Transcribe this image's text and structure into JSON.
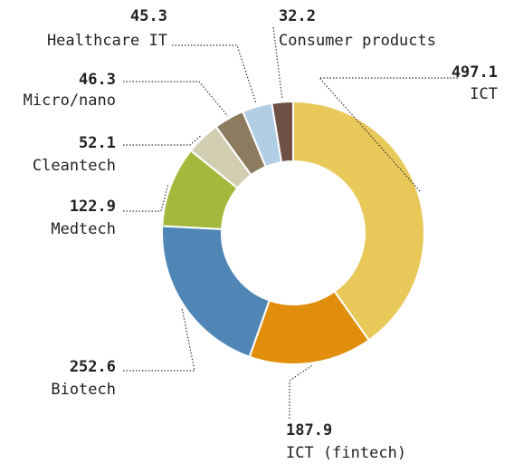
{
  "chart_data": {
    "type": "pie",
    "categories": [
      "ICT",
      "ICT (fintech)",
      "Biotech",
      "Medtech",
      "Cleantech",
      "Micro/nano",
      "Healthcare IT",
      "Consumer products"
    ],
    "values": [
      497.1,
      187.9,
      252.6,
      122.9,
      52.1,
      46.3,
      45.3,
      32.2
    ],
    "colors": [
      "#e9c85a",
      "#e08e0b",
      "#4f86b5",
      "#a3b93c",
      "#d0cdb1",
      "#8c7b5f",
      "#b0cde3",
      "#6e5144"
    ]
  }
}
